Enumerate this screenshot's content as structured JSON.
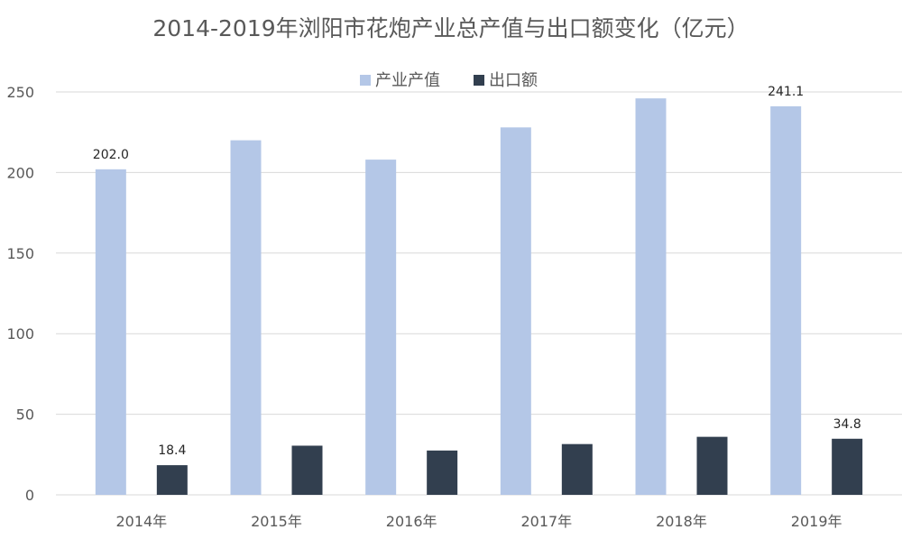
{
  "chart_data": {
    "type": "bar",
    "title": "2014-2019年浏阳市花炮产业总产值与出口额变化（亿元）",
    "legend_position": "top",
    "grid": true,
    "ylim": [
      0,
      250
    ],
    "yticks": [
      "0",
      "50",
      "100",
      "150",
      "200",
      "250"
    ],
    "categories": [
      "2014年",
      "2015年",
      "2016年",
      "2017年",
      "2018年",
      "2019年"
    ],
    "series": [
      {
        "name": "产业产值",
        "color": "#b4c7e7",
        "values": [
          202.0,
          220.0,
          208.0,
          228.0,
          246.0,
          241.1
        ],
        "data_labels": [
          "202.0",
          "",
          "",
          "",
          "",
          "241.1"
        ]
      },
      {
        "name": "出口额",
        "color": "#323f4f",
        "values": [
          18.4,
          30.5,
          27.5,
          31.5,
          36.0,
          34.8
        ],
        "data_labels": [
          "18.4",
          "",
          "",
          "",
          "",
          "34.8"
        ]
      }
    ],
    "colors": {
      "gridline": "#d9d9d9",
      "text": "#595959",
      "title": "#595959"
    }
  }
}
